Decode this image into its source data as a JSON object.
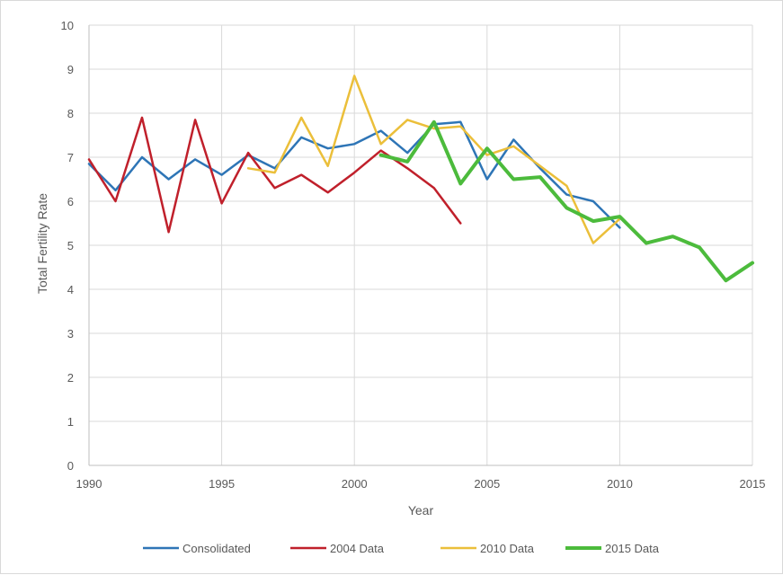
{
  "chart_data": {
    "type": "line",
    "title": "",
    "xlabel": "Year",
    "ylabel": "Total Fertility Rate",
    "xlim": [
      1990,
      2015
    ],
    "ylim": [
      0,
      10
    ],
    "x_ticks": [
      1990,
      1995,
      2000,
      2005,
      2010,
      2015
    ],
    "y_ticks": [
      0,
      1,
      2,
      3,
      4,
      5,
      6,
      7,
      8,
      9,
      10
    ],
    "grid": true,
    "legend_position": "bottom",
    "series": [
      {
        "name": "Consolidated",
        "color": "#2e75b6",
        "width": 2.5,
        "points": [
          [
            1990,
            6.85
          ],
          [
            1991,
            6.25
          ],
          [
            1992,
            7.0
          ],
          [
            1993,
            6.5
          ],
          [
            1994,
            6.95
          ],
          [
            1995,
            6.6
          ],
          [
            1996,
            7.05
          ],
          [
            1997,
            6.75
          ],
          [
            1998,
            7.45
          ],
          [
            1999,
            7.2
          ],
          [
            2000,
            7.3
          ],
          [
            2001,
            7.6
          ],
          [
            2002,
            7.1
          ],
          [
            2003,
            7.75
          ],
          [
            2004,
            7.8
          ],
          [
            2005,
            6.5
          ],
          [
            2006,
            7.4
          ],
          [
            2007,
            6.75
          ],
          [
            2008,
            6.15
          ],
          [
            2009,
            6.0
          ],
          [
            2010,
            5.4
          ]
        ]
      },
      {
        "name": "2004 Data",
        "color": "#c0202b",
        "width": 2.5,
        "points": [
          [
            1990,
            6.95
          ],
          [
            1991,
            6.0
          ],
          [
            1992,
            7.9
          ],
          [
            1993,
            5.3
          ],
          [
            1994,
            7.85
          ],
          [
            1995,
            5.95
          ],
          [
            1996,
            7.1
          ],
          [
            1997,
            6.3
          ],
          [
            1998,
            6.6
          ],
          [
            1999,
            6.2
          ],
          [
            2000,
            6.65
          ],
          [
            2001,
            7.15
          ],
          [
            2002,
            6.75
          ],
          [
            2003,
            6.3
          ],
          [
            2004,
            5.5
          ]
        ]
      },
      {
        "name": "2010 Data",
        "color": "#ebbf3a",
        "width": 2.5,
        "points": [
          [
            1996,
            6.75
          ],
          [
            1997,
            6.65
          ],
          [
            1998,
            7.9
          ],
          [
            1999,
            6.8
          ],
          [
            2000,
            8.85
          ],
          [
            2001,
            7.3
          ],
          [
            2002,
            7.85
          ],
          [
            2003,
            7.65
          ],
          [
            2004,
            7.7
          ],
          [
            2005,
            7.05
          ],
          [
            2006,
            7.25
          ],
          [
            2007,
            6.8
          ],
          [
            2008,
            6.35
          ],
          [
            2009,
            5.05
          ],
          [
            2010,
            5.6
          ]
        ]
      },
      {
        "name": "2015 Data",
        "color": "#4cbb3c",
        "width": 4,
        "points": [
          [
            2001,
            7.05
          ],
          [
            2002,
            6.9
          ],
          [
            2003,
            7.8
          ],
          [
            2004,
            6.4
          ],
          [
            2005,
            7.2
          ],
          [
            2006,
            6.5
          ],
          [
            2007,
            6.55
          ],
          [
            2008,
            5.85
          ],
          [
            2009,
            5.55
          ],
          [
            2010,
            5.65
          ],
          [
            2011,
            5.05
          ],
          [
            2012,
            5.2
          ],
          [
            2013,
            4.95
          ],
          [
            2014,
            4.2
          ],
          [
            2015,
            4.6
          ]
        ]
      }
    ]
  }
}
